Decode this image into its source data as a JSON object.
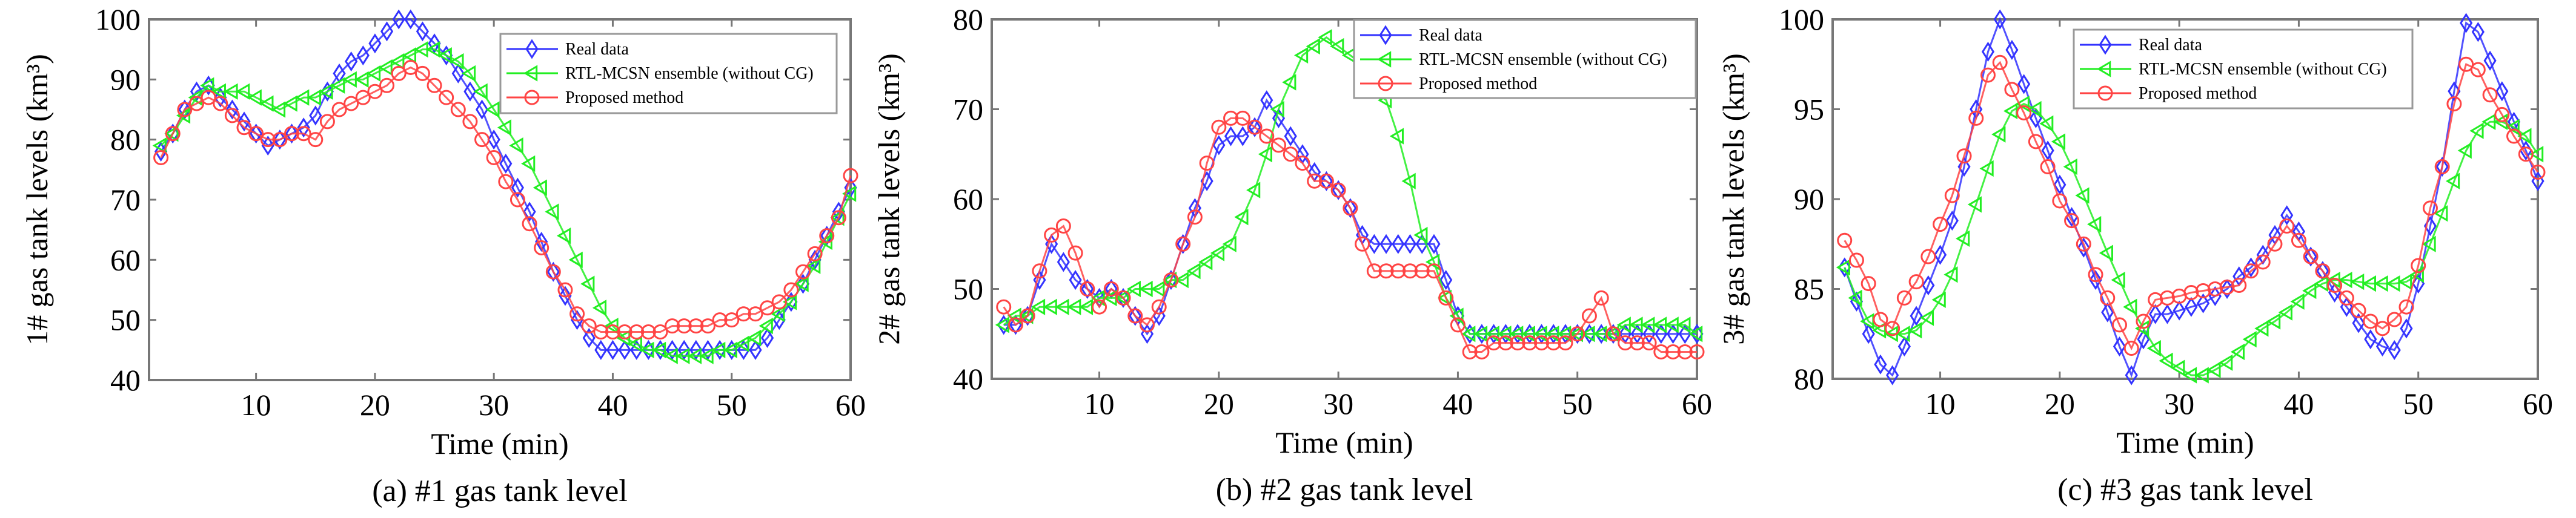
{
  "colors": {
    "real": "#3333ff",
    "rtl": "#22ee22",
    "proposed": "#ff4444",
    "axis": "#777777"
  },
  "chart_data": [
    {
      "type": "line",
      "caption": "(a) #1 gas tank level",
      "xlabel": "Time (min)",
      "ylabel": "1# gas tank levels (km³)",
      "xlim": [
        1,
        60
      ],
      "ylim": [
        40,
        100
      ],
      "xticks": [
        10,
        20,
        30,
        40,
        50,
        60
      ],
      "yticks": [
        40,
        50,
        60,
        70,
        80,
        90,
        100
      ],
      "legend_position": "top-right",
      "x_start": 2,
      "series": [
        {
          "name": "Real data",
          "marker": "diamond",
          "values": [
            78,
            81,
            85,
            88,
            89,
            87,
            85,
            83,
            81,
            79,
            80,
            81,
            82,
            84,
            88,
            91,
            93,
            94,
            96,
            98,
            100,
            100,
            98,
            96,
            94,
            91,
            88,
            85,
            80,
            76,
            72,
            68,
            63,
            58,
            54,
            50,
            47,
            45,
            45,
            45,
            45,
            45,
            45,
            45,
            45,
            45,
            45,
            45,
            45,
            45,
            45,
            47,
            50,
            53,
            56,
            60,
            64,
            68,
            72
          ]
        },
        {
          "name": "RTL-MCSN ensemble (without CG)",
          "marker": "triangle-left",
          "values": [
            79,
            81,
            84,
            87,
            89,
            88,
            88,
            88,
            87,
            86,
            85,
            86,
            87,
            87,
            88,
            89,
            90,
            90,
            91,
            92,
            93,
            94,
            95,
            95,
            94,
            93,
            91,
            88,
            85,
            82,
            79,
            76,
            72,
            68,
            64,
            60,
            56,
            52,
            49,
            47,
            46,
            45,
            45,
            44,
            44,
            44,
            44,
            45,
            45,
            46,
            47,
            49,
            51,
            53,
            56,
            59,
            63,
            67,
            71
          ]
        },
        {
          "name": "Proposed method",
          "marker": "circle",
          "values": [
            77,
            81,
            85,
            86,
            87,
            86,
            84,
            82,
            81,
            80,
            80,
            81,
            81,
            80,
            83,
            85,
            86,
            87,
            88,
            89,
            91,
            92,
            91,
            89,
            87,
            85,
            83,
            80,
            77,
            73,
            70,
            66,
            62,
            58,
            55,
            51,
            49,
            48,
            48,
            48,
            48,
            48,
            48,
            49,
            49,
            49,
            49,
            50,
            50,
            51,
            51,
            52,
            53,
            55,
            58,
            61,
            64,
            67,
            74
          ]
        }
      ]
    },
    {
      "type": "line",
      "caption": "(b) #2 gas tank level",
      "xlabel": "Time (min)",
      "ylabel": "2# gas tank levels (km³)",
      "xlim": [
        1,
        60
      ],
      "ylim": [
        40,
        80
      ],
      "xticks": [
        10,
        20,
        30,
        40,
        50,
        60
      ],
      "yticks": [
        40,
        50,
        60,
        70,
        80
      ],
      "legend_position": "top-right",
      "x_start": 2,
      "series": [
        {
          "name": "Real data",
          "marker": "diamond",
          "values": [
            46,
            46,
            47,
            51,
            55,
            53,
            51,
            50,
            49,
            50,
            49,
            47,
            45,
            47,
            51,
            55,
            59,
            62,
            66,
            67,
            67,
            68,
            71,
            69,
            67,
            65,
            63,
            62,
            61,
            59,
            56,
            55,
            55,
            55,
            55,
            55,
            55,
            51,
            47,
            45,
            45,
            45,
            45,
            45,
            45,
            45,
            45,
            45,
            45,
            45,
            45,
            45,
            45,
            45,
            45,
            45,
            45,
            45,
            45
          ]
        },
        {
          "name": "RTL-MCSN ensemble (without CG)",
          "marker": "triangle-left",
          "values": [
            46,
            47,
            47,
            48,
            48,
            48,
            48,
            48,
            49,
            49,
            49,
            50,
            50,
            50,
            51,
            51,
            52,
            53,
            54,
            55,
            58,
            61,
            65,
            70,
            73,
            76,
            77,
            78,
            77,
            76,
            75,
            72,
            71,
            67,
            62,
            56,
            53,
            49,
            47,
            45,
            45,
            45,
            45,
            45,
            45,
            45,
            45,
            45,
            45,
            45,
            45,
            45,
            46,
            46,
            46,
            46,
            46,
            46,
            45
          ]
        },
        {
          "name": "Proposed method",
          "marker": "circle",
          "values": [
            48,
            46,
            47,
            52,
            56,
            57,
            54,
            50,
            48,
            50,
            49,
            47,
            46,
            48,
            51,
            55,
            58,
            64,
            68,
            69,
            69,
            68,
            67,
            66,
            65,
            64,
            62,
            62,
            61,
            59,
            55,
            52,
            52,
            52,
            52,
            52,
            52,
            49,
            46,
            43,
            43,
            44,
            44,
            44,
            44,
            44,
            44,
            44,
            45,
            47,
            49,
            45,
            44,
            44,
            44,
            43,
            43,
            43,
            43
          ]
        }
      ]
    },
    {
      "type": "line",
      "caption": "(c) #3 gas tank level",
      "xlabel": "Time (min)",
      "ylabel": "3# gas tank levels (km³)",
      "xlim": [
        1,
        60
      ],
      "ylim": [
        80,
        100
      ],
      "xticks": [
        10,
        20,
        30,
        40,
        50,
        60
      ],
      "yticks": [
        80,
        85,
        90,
        95,
        100
      ],
      "legend_position": "top-center",
      "x_start": 2,
      "series": [
        {
          "name": "Real data",
          "marker": "diamond",
          "values": [
            86.2,
            84.3,
            82.5,
            80.8,
            80.2,
            81.8,
            83.5,
            85.2,
            86.9,
            88.8,
            91.8,
            95,
            98.2,
            100,
            98.3,
            96.4,
            94.5,
            92.7,
            90.8,
            89,
            87.3,
            85.5,
            83.7,
            81.8,
            80.2,
            82.2,
            83.6,
            83.6,
            83.8,
            84,
            84.2,
            84.6,
            85,
            85.7,
            86.2,
            86.9,
            88,
            89.1,
            88.2,
            86.8,
            86,
            84.8,
            84,
            83.1,
            82.2,
            81.8,
            81.6,
            82.8,
            85.3,
            88.5,
            91.8,
            96,
            99.8,
            99.3,
            97.7,
            96,
            94.3,
            92.7,
            91
          ]
        },
        {
          "name": "RTL-MCSN ensemble (without CG)",
          "marker": "triangle-left",
          "values": [
            86.2,
            84.5,
            83.2,
            82.7,
            82.5,
            82.5,
            82.7,
            83.4,
            84.4,
            85.8,
            87.8,
            89.7,
            91.7,
            93.6,
            94.9,
            95.3,
            95,
            94.2,
            93.2,
            91.8,
            90.2,
            88.6,
            87,
            85.5,
            84,
            82.8,
            81.7,
            81,
            80.6,
            80.2,
            80.2,
            80.5,
            80.9,
            81.5,
            82.2,
            82.8,
            83.2,
            83.7,
            84.3,
            84.9,
            85.3,
            85.5,
            85.5,
            85.4,
            85.3,
            85.3,
            85.3,
            85.4,
            85.8,
            87.5,
            89.2,
            91,
            92.7,
            93.8,
            94.3,
            94.3,
            94,
            93.5,
            92.5
          ]
        },
        {
          "name": "Proposed method",
          "marker": "circle",
          "values": [
            87.7,
            86.6,
            85.3,
            83.3,
            82.8,
            84.5,
            85.4,
            86.8,
            88.6,
            90.2,
            92.4,
            94.5,
            96.9,
            97.6,
            96.1,
            94.8,
            93.2,
            91.8,
            89.9,
            88.8,
            87.5,
            85.8,
            84.5,
            83,
            81.7,
            83.2,
            84.4,
            84.5,
            84.6,
            84.8,
            84.9,
            85,
            85.1,
            85.2,
            86,
            86.5,
            87.5,
            88.5,
            87.7,
            86.8,
            86,
            85.2,
            84.5,
            83.8,
            83.2,
            82.8,
            83.3,
            84,
            86.3,
            89.5,
            91.8,
            95.3,
            97.5,
            97.2,
            95.8,
            94.7,
            93.5,
            92.5,
            91.5
          ]
        }
      ]
    }
  ]
}
